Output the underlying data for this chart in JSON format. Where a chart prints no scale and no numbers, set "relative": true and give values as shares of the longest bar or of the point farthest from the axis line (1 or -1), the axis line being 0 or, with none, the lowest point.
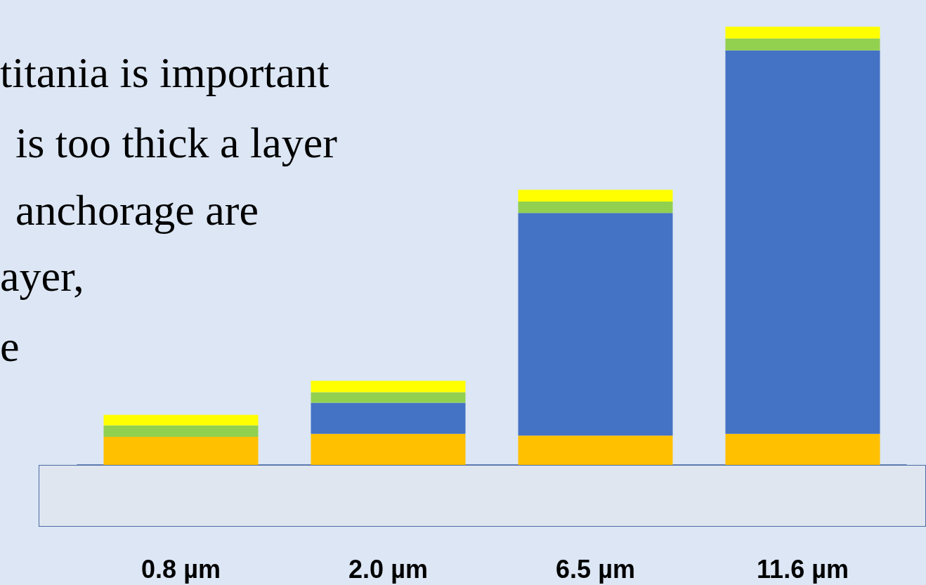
{
  "chart_data": {
    "type": "bar",
    "stacked": true,
    "categories": [
      "0.8 µm",
      "2.0 µm",
      "6.5 µm",
      "11.6 µm"
    ],
    "series": [
      {
        "color": "#ffc000",
        "values": [
          0.064,
          0.071,
          0.067,
          0.071
        ]
      },
      {
        "color": "#4472c4",
        "values": [
          0,
          0.071,
          0.508,
          0.875
        ]
      },
      {
        "color": "#92d050",
        "values": [
          0.026,
          0.024,
          0.026,
          0.027
        ]
      },
      {
        "color": "#ffff00",
        "values": [
          0.024,
          0.026,
          0.027,
          0.027
        ]
      }
    ],
    "annotations": [
      "titania is important",
      "is too thick a layer",
      "anchorage are",
      "ayer,",
      "e"
    ],
    "relative": true
  }
}
